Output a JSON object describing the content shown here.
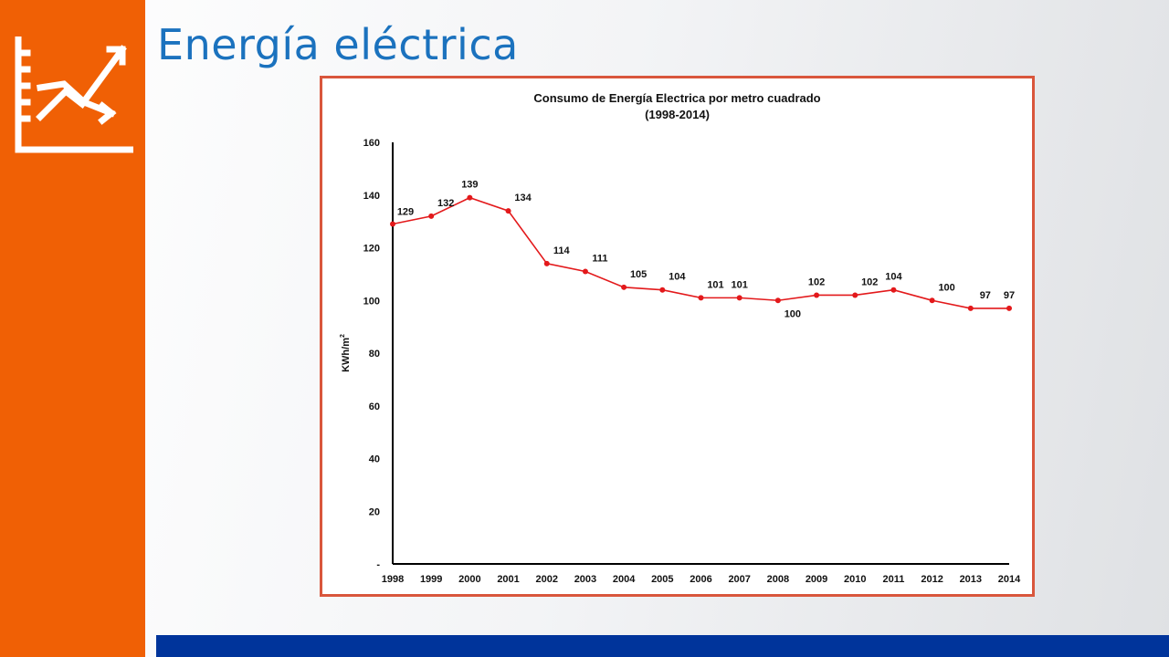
{
  "slide": {
    "title": "Energía eléctrica",
    "icon": "trend-chart-icon",
    "colors": {
      "sidebar": "#f06005",
      "title": "#1b72be",
      "bottom_bar": "#00349b",
      "frame": "#d9563c"
    }
  },
  "chart_data": {
    "type": "line",
    "title": "Consumo de Energía Electrica por metro cuadrado",
    "subtitle": "(1998-2014)",
    "ylabel": "KWh/m",
    "ylabel_sup": "2",
    "xlabel": "",
    "x": [
      "1998",
      "1999",
      "2000",
      "2001",
      "2002",
      "2003",
      "2004",
      "2005",
      "2006",
      "2007",
      "2008",
      "2009",
      "2010",
      "2011",
      "2012",
      "2013",
      "2014"
    ],
    "series": [
      {
        "values": [
          129,
          132,
          139,
          134,
          114,
          111,
          105,
          104,
          101,
          101,
          100,
          102,
          102,
          104,
          100,
          97,
          97
        ],
        "color": "#e3191b"
      }
    ],
    "ylim": [
      0,
      160
    ],
    "yticks": [
      0,
      20,
      40,
      60,
      80,
      100,
      120,
      140,
      160
    ],
    "ytick_labels": [
      "-",
      "20",
      "40",
      "60",
      "80",
      "100",
      "120",
      "140",
      "160"
    ],
    "grid": false,
    "legend": false,
    "data_labels": true
  }
}
